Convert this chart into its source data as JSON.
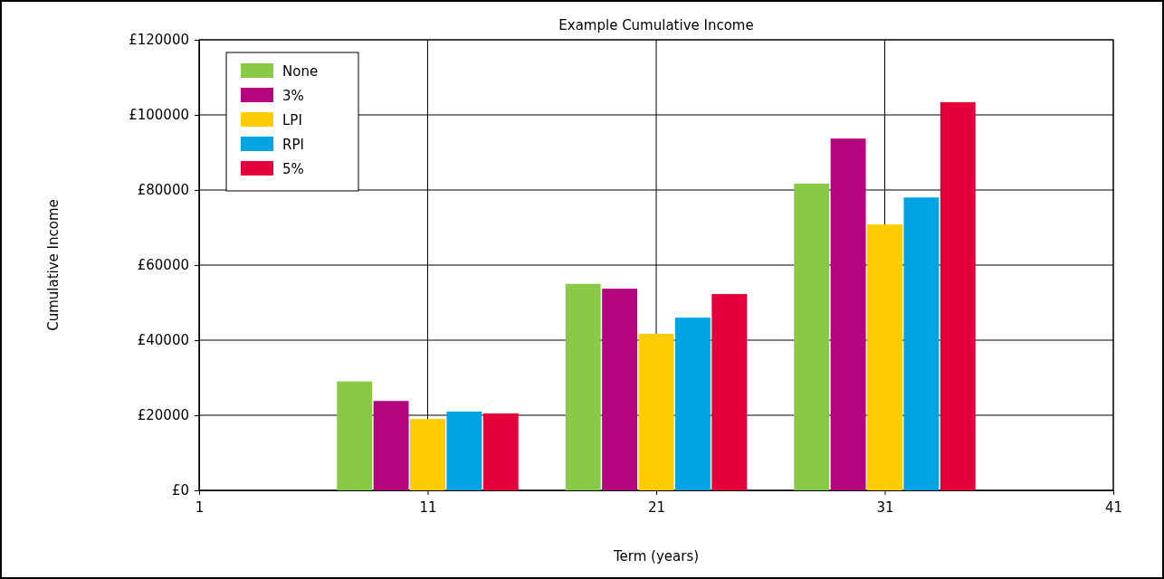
{
  "chart_data": {
    "type": "bar",
    "title": "Example Cumulative Income",
    "xlabel": "Term (years)",
    "ylabel": "Cumulative Income",
    "x": [
      11,
      21,
      31
    ],
    "series": [
      {
        "name": "None",
        "color": "#88c946",
        "values": [
          29000,
          55000,
          81700
        ]
      },
      {
        "name": "3%",
        "color": "#b4047e",
        "values": [
          23800,
          53700,
          93700
        ]
      },
      {
        "name": "LPI",
        "color": "#fecc00",
        "values": [
          19000,
          41700,
          70800
        ]
      },
      {
        "name": "RPI",
        "color": "#00a3e3",
        "values": [
          21000,
          46000,
          78000
        ]
      },
      {
        "name": "5%",
        "color": "#e4003a",
        "values": [
          20500,
          52300,
          103400
        ]
      }
    ],
    "xlim": [
      1,
      41
    ],
    "xticks": [
      1,
      11,
      21,
      31,
      41
    ],
    "ylim": [
      0,
      120000
    ],
    "yticks": [
      {
        "value": 0,
        "label": "£0"
      },
      {
        "value": 20000,
        "label": "£20000"
      },
      {
        "value": 40000,
        "label": "£40000"
      },
      {
        "value": 60000,
        "label": "£60000"
      },
      {
        "value": 80000,
        "label": "£80000"
      },
      {
        "value": 100000,
        "label": "£100000"
      },
      {
        "value": 120000,
        "label": "£120000"
      }
    ],
    "grid": true,
    "legend": "top left"
  }
}
